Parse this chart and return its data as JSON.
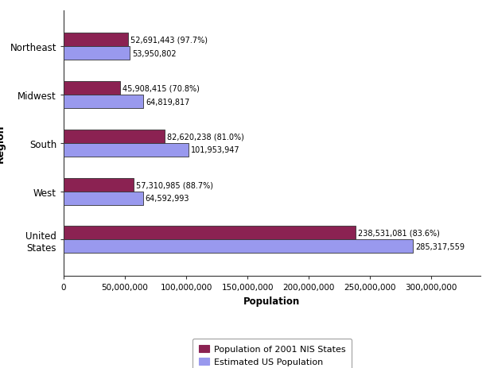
{
  "regions": [
    "United\nStates",
    "West",
    "South",
    "Midwest",
    "Northeast"
  ],
  "nis_values": [
    238531081,
    57310985,
    82620238,
    45908415,
    52691443
  ],
  "us_values": [
    285317559,
    64592993,
    101953947,
    64819817,
    53950802
  ],
  "nis_labels": [
    "238,531,081 (83.6%)",
    "57,310,985 (88.7%)",
    "82,620,238 (81.0%)",
    "45,908,415 (70.8%)",
    "52,691,443 (97.7%)"
  ],
  "us_labels": [
    "285,317,559",
    "64,592,993",
    "101,953,947",
    "64,819,817",
    "53,950,802"
  ],
  "nis_color": "#8B2252",
  "us_color": "#9999EE",
  "xlabel": "Population",
  "ylabel": "Region",
  "xlim": [
    0,
    340000000
  ],
  "xticks": [
    0,
    50000000,
    100000000,
    150000000,
    200000000,
    250000000,
    300000000
  ],
  "xtick_labels": [
    "0",
    "50,000,000",
    "100,000,000",
    "150,000,000",
    "200,000,000",
    "250,000,000",
    "300,000,000"
  ],
  "legend_nis": "Population of 2001 NIS States",
  "legend_us": "Estimated US Population",
  "bar_height": 0.28,
  "label_fontsize": 7,
  "axis_fontsize": 8.5,
  "tick_fontsize": 7.5,
  "ylabel_fontsize": 9
}
